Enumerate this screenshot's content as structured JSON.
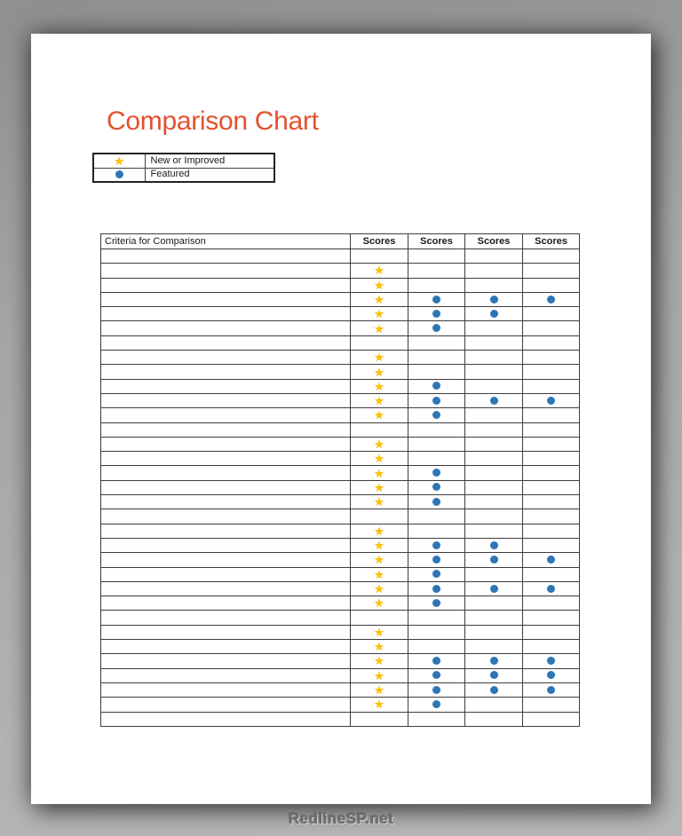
{
  "page": {
    "title": "Comparison Chart",
    "watermark": "RedlineSP.net"
  },
  "legend": {
    "items": [
      {
        "icon": "star-icon",
        "label": "New or Improved"
      },
      {
        "icon": "featured-dot-icon",
        "label": "Featured"
      }
    ]
  },
  "table": {
    "criteria_header": "Criteria for Comparison",
    "score_headers": [
      "Scores",
      "Scores",
      "Scores",
      "Scores"
    ],
    "rows": [
      {
        "criteria": "",
        "cells": [
          "",
          "",
          "",
          ""
        ]
      },
      {
        "criteria": "",
        "cells": [
          "star",
          "",
          "",
          ""
        ]
      },
      {
        "criteria": "",
        "cells": [
          "star",
          "",
          "",
          ""
        ]
      },
      {
        "criteria": "",
        "cells": [
          "star",
          "dot",
          "dot",
          "dot"
        ]
      },
      {
        "criteria": "",
        "cells": [
          "star",
          "dot",
          "dot",
          ""
        ]
      },
      {
        "criteria": "",
        "cells": [
          "star",
          "dot",
          "",
          ""
        ]
      },
      {
        "criteria": "",
        "cells": [
          "",
          "",
          "",
          ""
        ]
      },
      {
        "criteria": "",
        "cells": [
          "star",
          "",
          "",
          ""
        ]
      },
      {
        "criteria": "",
        "cells": [
          "star",
          "",
          "",
          ""
        ]
      },
      {
        "criteria": "",
        "cells": [
          "star",
          "dot",
          "",
          ""
        ]
      },
      {
        "criteria": "",
        "cells": [
          "star",
          "dot",
          "dot",
          "dot"
        ]
      },
      {
        "criteria": "",
        "cells": [
          "star",
          "dot",
          "",
          ""
        ]
      },
      {
        "criteria": "",
        "cells": [
          "",
          "",
          "",
          ""
        ]
      },
      {
        "criteria": "",
        "cells": [
          "star",
          "",
          "",
          ""
        ]
      },
      {
        "criteria": "",
        "cells": [
          "star",
          "",
          "",
          ""
        ]
      },
      {
        "criteria": "",
        "cells": [
          "star",
          "dot",
          "",
          ""
        ]
      },
      {
        "criteria": "",
        "cells": [
          "star",
          "dot",
          "",
          ""
        ]
      },
      {
        "criteria": "",
        "cells": [
          "star",
          "dot",
          "",
          ""
        ]
      },
      {
        "criteria": "",
        "cells": [
          "",
          "",
          "",
          ""
        ]
      },
      {
        "criteria": "",
        "cells": [
          "star",
          "",
          "",
          ""
        ]
      },
      {
        "criteria": "",
        "cells": [
          "star",
          "dot",
          "dot",
          ""
        ]
      },
      {
        "criteria": "",
        "cells": [
          "star",
          "dot",
          "dot",
          "dot"
        ]
      },
      {
        "criteria": "",
        "cells": [
          "star",
          "dot",
          "",
          ""
        ]
      },
      {
        "criteria": "",
        "cells": [
          "star",
          "dot",
          "dot",
          "dot"
        ]
      },
      {
        "criteria": "",
        "cells": [
          "star",
          "dot",
          "",
          ""
        ]
      },
      {
        "criteria": "",
        "cells": [
          "",
          "",
          "",
          ""
        ]
      },
      {
        "criteria": "",
        "cells": [
          "star",
          "",
          "",
          ""
        ]
      },
      {
        "criteria": "",
        "cells": [
          "star",
          "",
          "",
          ""
        ]
      },
      {
        "criteria": "",
        "cells": [
          "star",
          "dot",
          "dot",
          "dot"
        ]
      },
      {
        "criteria": "",
        "cells": [
          "star",
          "dot",
          "dot",
          "dot"
        ]
      },
      {
        "criteria": "",
        "cells": [
          "star",
          "dot",
          "dot",
          "dot"
        ]
      },
      {
        "criteria": "",
        "cells": [
          "star",
          "dot",
          "",
          ""
        ]
      },
      {
        "criteria": "",
        "cells": [
          "",
          "",
          "",
          ""
        ]
      }
    ]
  },
  "colors": {
    "title": "#E2512C",
    "star": "#FFC000",
    "dot": "#2E75B6",
    "table_border": "#3D3D3D"
  }
}
